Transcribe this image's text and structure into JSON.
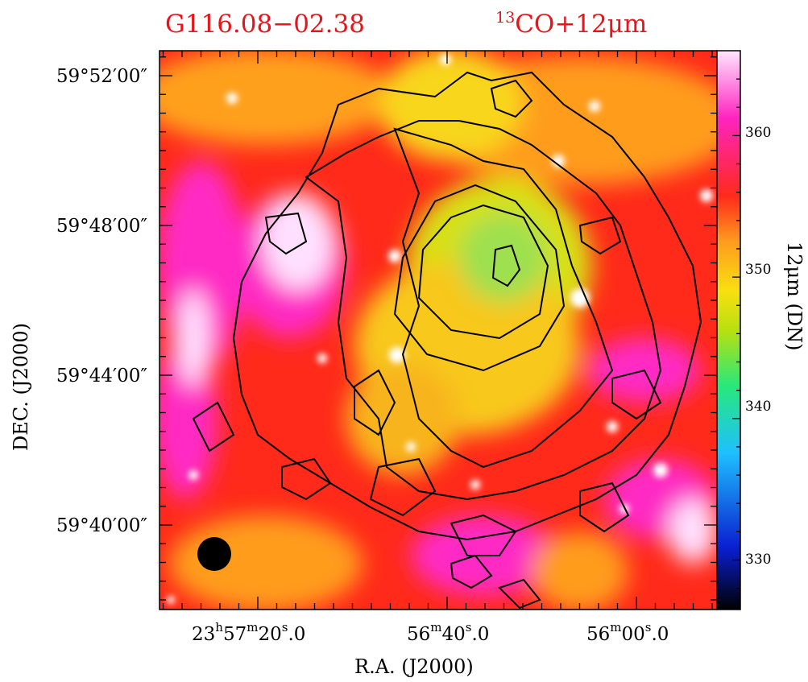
{
  "chart_data": {
    "type": "heatmap",
    "title_left": "G116.08−02.38",
    "title_right_sup": "13",
    "title_right": "CO+12μm",
    "xlabel": "R.A.  (J2000)",
    "ylabel": "DEC.  (J2000)",
    "colorbar_label": "12μm  (DN)",
    "x_ticks": [
      {
        "h": "23",
        "hs": "h",
        "m": "57",
        "ms": "m",
        "s": "20",
        "ss": "s",
        "frac": ".0"
      },
      {
        "m": "56",
        "ms": "m",
        "s": "40",
        "ss": "s",
        "frac": ".0"
      },
      {
        "m": "56",
        "ms": "m",
        "s": "00",
        "ss": "s",
        "frac": ".0"
      }
    ],
    "y_ticks": [
      "59°52′00″",
      "59°48′00″",
      "59°44′00″",
      "59°40′00″"
    ],
    "colorbar_ticks": [
      330,
      340,
      350,
      360
    ],
    "colorbar_range": [
      326.5,
      366
    ],
    "colors": [
      "#000000",
      "#0a1ed0",
      "#1ec0ff",
      "#28e87a",
      "#b8e010",
      "#f8e010",
      "#ff9a1e",
      "#ff2a1a",
      "#ff24c0",
      "#ffe6ff"
    ],
    "beam": "filled black circle, lower-left",
    "contour_color": "#000000"
  }
}
